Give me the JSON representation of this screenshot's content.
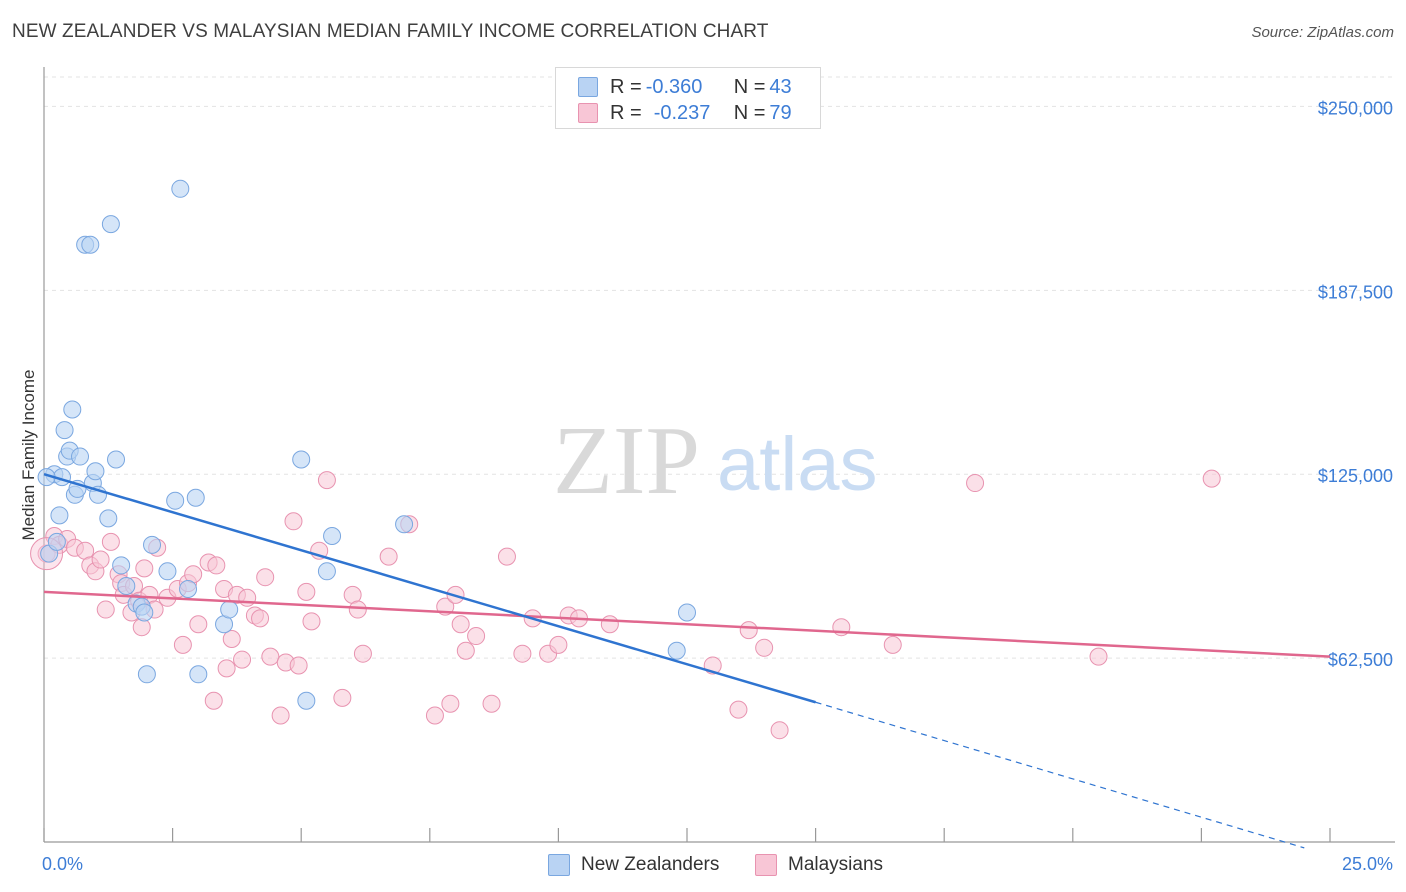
{
  "title": "NEW ZEALANDER VS MALAYSIAN MEDIAN FAMILY INCOME CORRELATION CHART",
  "source": "Source: ZipAtlas.com",
  "watermark": {
    "zip": "ZIP",
    "atlas": "atlas"
  },
  "legend_top": [
    {
      "r_label": "R = ",
      "r_value": "-0.360",
      "n_label": "N = ",
      "n_value": "43"
    },
    {
      "r_label": "R = ",
      "r_value": "-0.237",
      "n_label": "N = ",
      "n_value": "79"
    }
  ],
  "legend_bottom": [
    "New Zealanders",
    "Malaysians"
  ],
  "colors": {
    "nz_fill": "#b9d3f3",
    "nz_stroke": "#7aa7e0",
    "nz_line": "#2f74d0",
    "my_fill": "#f8c6d6",
    "my_stroke": "#e893b0",
    "my_line": "#e0678e",
    "tick_text": "#3d7dd6",
    "grid": "#e3e3e3"
  },
  "chart_data": {
    "type": "scatter",
    "xlabel": "",
    "ylabel": "Median Family Income",
    "xlim": [
      0,
      25
    ],
    "ylim": [
      0,
      260000
    ],
    "x_tick_labels": [
      "0.0%",
      "25.0%"
    ],
    "y_ticks": [
      62500,
      125000,
      187500,
      250000
    ],
    "y_tick_labels": [
      "$62,500",
      "$125,000",
      "$187,500",
      "$250,000"
    ],
    "grid": true,
    "series": [
      {
        "name": "New Zealanders",
        "r": -0.36,
        "n": 43,
        "trend": {
          "x0": 0,
          "y0": 125000,
          "x1": 15,
          "y1": 47500,
          "dashed_to_x": 24.5,
          "dashed_to_y": -2000
        },
        "points": [
          [
            0.1,
            98000
          ],
          [
            0.2,
            125000
          ],
          [
            0.25,
            102000
          ],
          [
            0.3,
            111000
          ],
          [
            0.35,
            124000
          ],
          [
            0.4,
            140000
          ],
          [
            0.45,
            131000
          ],
          [
            0.5,
            133000
          ],
          [
            0.55,
            147000
          ],
          [
            0.6,
            118000
          ],
          [
            0.65,
            120000
          ],
          [
            0.7,
            131000
          ],
          [
            0.8,
            203000
          ],
          [
            0.9,
            203000
          ],
          [
            0.95,
            122000
          ],
          [
            1.0,
            126000
          ],
          [
            1.05,
            118000
          ],
          [
            1.3,
            210000
          ],
          [
            1.25,
            110000
          ],
          [
            1.4,
            130000
          ],
          [
            1.5,
            94000
          ],
          [
            1.6,
            87000
          ],
          [
            1.8,
            81000
          ],
          [
            1.9,
            80000
          ],
          [
            1.95,
            78000
          ],
          [
            2.0,
            57000
          ],
          [
            2.1,
            101000
          ],
          [
            2.4,
            92000
          ],
          [
            2.55,
            116000
          ],
          [
            2.65,
            222000
          ],
          [
            2.8,
            86000
          ],
          [
            2.95,
            117000
          ],
          [
            3.0,
            57000
          ],
          [
            3.5,
            74000
          ],
          [
            3.6,
            79000
          ],
          [
            5.0,
            130000
          ],
          [
            5.1,
            48000
          ],
          [
            5.5,
            92000
          ],
          [
            5.6,
            104000
          ],
          [
            7.0,
            108000
          ],
          [
            12.3,
            65000
          ],
          [
            12.5,
            78000
          ],
          [
            0.05,
            124000
          ]
        ]
      },
      {
        "name": "Malaysians",
        "r": -0.237,
        "n": 79,
        "trend": {
          "x0": 0,
          "y0": 85000,
          "x1": 25,
          "y1": 63000
        },
        "points": [
          [
            0.05,
            98000
          ],
          [
            0.2,
            104000
          ],
          [
            0.3,
            101000
          ],
          [
            0.45,
            103000
          ],
          [
            0.6,
            100000
          ],
          [
            0.8,
            99000
          ],
          [
            0.9,
            94000
          ],
          [
            1.0,
            92000
          ],
          [
            1.1,
            96000
          ],
          [
            1.2,
            79000
          ],
          [
            1.3,
            102000
          ],
          [
            1.45,
            91000
          ],
          [
            1.5,
            88000
          ],
          [
            1.55,
            84000
          ],
          [
            1.7,
            78000
          ],
          [
            1.75,
            87000
          ],
          [
            1.85,
            82000
          ],
          [
            1.9,
            73000
          ],
          [
            1.95,
            93000
          ],
          [
            2.05,
            84000
          ],
          [
            2.15,
            79000
          ],
          [
            2.2,
            100000
          ],
          [
            2.4,
            83000
          ],
          [
            2.6,
            86000
          ],
          [
            2.7,
            67000
          ],
          [
            2.8,
            88000
          ],
          [
            2.9,
            91000
          ],
          [
            3.0,
            74000
          ],
          [
            3.2,
            95000
          ],
          [
            3.3,
            48000
          ],
          [
            3.35,
            94000
          ],
          [
            3.5,
            86000
          ],
          [
            3.55,
            59000
          ],
          [
            3.65,
            69000
          ],
          [
            3.75,
            84000
          ],
          [
            3.85,
            62000
          ],
          [
            3.95,
            83000
          ],
          [
            4.1,
            77000
          ],
          [
            4.2,
            76000
          ],
          [
            4.3,
            90000
          ],
          [
            4.4,
            63000
          ],
          [
            4.6,
            43000
          ],
          [
            4.7,
            61000
          ],
          [
            4.85,
            109000
          ],
          [
            4.95,
            60000
          ],
          [
            5.1,
            85000
          ],
          [
            5.2,
            75000
          ],
          [
            5.35,
            99000
          ],
          [
            5.5,
            123000
          ],
          [
            5.8,
            49000
          ],
          [
            6.0,
            84000
          ],
          [
            6.1,
            79000
          ],
          [
            6.2,
            64000
          ],
          [
            6.7,
            97000
          ],
          [
            7.1,
            108000
          ],
          [
            7.6,
            43000
          ],
          [
            7.8,
            80000
          ],
          [
            7.9,
            47000
          ],
          [
            8.0,
            84000
          ],
          [
            8.1,
            74000
          ],
          [
            8.2,
            65000
          ],
          [
            8.4,
            70000
          ],
          [
            8.7,
            47000
          ],
          [
            9.0,
            97000
          ],
          [
            9.3,
            64000
          ],
          [
            9.5,
            76000
          ],
          [
            9.8,
            64000
          ],
          [
            10.0,
            67000
          ],
          [
            10.2,
            77000
          ],
          [
            10.4,
            76000
          ],
          [
            11.0,
            74000
          ],
          [
            13.0,
            60000
          ],
          [
            13.5,
            45000
          ],
          [
            13.7,
            72000
          ],
          [
            14.0,
            66000
          ],
          [
            14.3,
            38000
          ],
          [
            15.5,
            73000
          ],
          [
            16.5,
            67000
          ],
          [
            20.5,
            63000
          ]
        ]
      }
    ],
    "extra_points": [
      {
        "series": "Malaysians",
        "x": 18.1,
        "y": 122000
      },
      {
        "series": "Malaysians",
        "x": 22.7,
        "y": 123500
      }
    ]
  }
}
